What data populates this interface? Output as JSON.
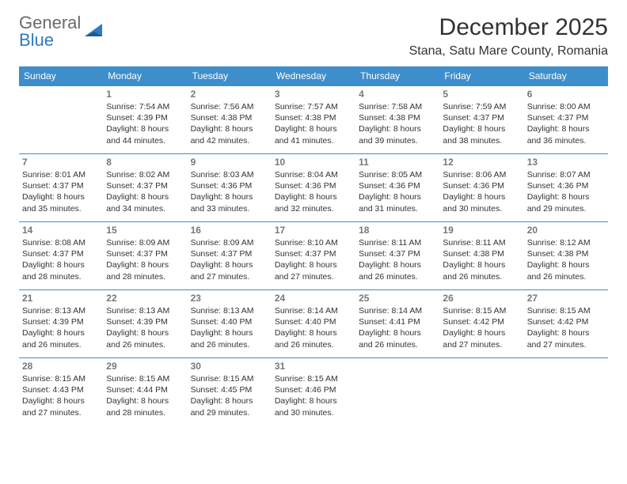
{
  "logo": {
    "line1": "General",
    "line2": "Blue",
    "color1": "#6a6a6a",
    "color2": "#2f7bbf"
  },
  "title": "December 2025",
  "location": "Stana, Satu Mare County, Romania",
  "headerBg": "#3e8ecb",
  "borderColor": "#3e8ecb",
  "dow": [
    "Sunday",
    "Monday",
    "Tuesday",
    "Wednesday",
    "Thursday",
    "Friday",
    "Saturday"
  ],
  "weeks": [
    [
      null,
      {
        "n": "1",
        "sr": "7:54 AM",
        "ss": "4:39 PM",
        "dl": "8 hours and 44 minutes."
      },
      {
        "n": "2",
        "sr": "7:56 AM",
        "ss": "4:38 PM",
        "dl": "8 hours and 42 minutes."
      },
      {
        "n": "3",
        "sr": "7:57 AM",
        "ss": "4:38 PM",
        "dl": "8 hours and 41 minutes."
      },
      {
        "n": "4",
        "sr": "7:58 AM",
        "ss": "4:38 PM",
        "dl": "8 hours and 39 minutes."
      },
      {
        "n": "5",
        "sr": "7:59 AM",
        "ss": "4:37 PM",
        "dl": "8 hours and 38 minutes."
      },
      {
        "n": "6",
        "sr": "8:00 AM",
        "ss": "4:37 PM",
        "dl": "8 hours and 36 minutes."
      }
    ],
    [
      {
        "n": "7",
        "sr": "8:01 AM",
        "ss": "4:37 PM",
        "dl": "8 hours and 35 minutes."
      },
      {
        "n": "8",
        "sr": "8:02 AM",
        "ss": "4:37 PM",
        "dl": "8 hours and 34 minutes."
      },
      {
        "n": "9",
        "sr": "8:03 AM",
        "ss": "4:36 PM",
        "dl": "8 hours and 33 minutes."
      },
      {
        "n": "10",
        "sr": "8:04 AM",
        "ss": "4:36 PM",
        "dl": "8 hours and 32 minutes."
      },
      {
        "n": "11",
        "sr": "8:05 AM",
        "ss": "4:36 PM",
        "dl": "8 hours and 31 minutes."
      },
      {
        "n": "12",
        "sr": "8:06 AM",
        "ss": "4:36 PM",
        "dl": "8 hours and 30 minutes."
      },
      {
        "n": "13",
        "sr": "8:07 AM",
        "ss": "4:36 PM",
        "dl": "8 hours and 29 minutes."
      }
    ],
    [
      {
        "n": "14",
        "sr": "8:08 AM",
        "ss": "4:37 PM",
        "dl": "8 hours and 28 minutes."
      },
      {
        "n": "15",
        "sr": "8:09 AM",
        "ss": "4:37 PM",
        "dl": "8 hours and 28 minutes."
      },
      {
        "n": "16",
        "sr": "8:09 AM",
        "ss": "4:37 PM",
        "dl": "8 hours and 27 minutes."
      },
      {
        "n": "17",
        "sr": "8:10 AM",
        "ss": "4:37 PM",
        "dl": "8 hours and 27 minutes."
      },
      {
        "n": "18",
        "sr": "8:11 AM",
        "ss": "4:37 PM",
        "dl": "8 hours and 26 minutes."
      },
      {
        "n": "19",
        "sr": "8:11 AM",
        "ss": "4:38 PM",
        "dl": "8 hours and 26 minutes."
      },
      {
        "n": "20",
        "sr": "8:12 AM",
        "ss": "4:38 PM",
        "dl": "8 hours and 26 minutes."
      }
    ],
    [
      {
        "n": "21",
        "sr": "8:13 AM",
        "ss": "4:39 PM",
        "dl": "8 hours and 26 minutes."
      },
      {
        "n": "22",
        "sr": "8:13 AM",
        "ss": "4:39 PM",
        "dl": "8 hours and 26 minutes."
      },
      {
        "n": "23",
        "sr": "8:13 AM",
        "ss": "4:40 PM",
        "dl": "8 hours and 26 minutes."
      },
      {
        "n": "24",
        "sr": "8:14 AM",
        "ss": "4:40 PM",
        "dl": "8 hours and 26 minutes."
      },
      {
        "n": "25",
        "sr": "8:14 AM",
        "ss": "4:41 PM",
        "dl": "8 hours and 26 minutes."
      },
      {
        "n": "26",
        "sr": "8:15 AM",
        "ss": "4:42 PM",
        "dl": "8 hours and 27 minutes."
      },
      {
        "n": "27",
        "sr": "8:15 AM",
        "ss": "4:42 PM",
        "dl": "8 hours and 27 minutes."
      }
    ],
    [
      {
        "n": "28",
        "sr": "8:15 AM",
        "ss": "4:43 PM",
        "dl": "8 hours and 27 minutes."
      },
      {
        "n": "29",
        "sr": "8:15 AM",
        "ss": "4:44 PM",
        "dl": "8 hours and 28 minutes."
      },
      {
        "n": "30",
        "sr": "8:15 AM",
        "ss": "4:45 PM",
        "dl": "8 hours and 29 minutes."
      },
      {
        "n": "31",
        "sr": "8:15 AM",
        "ss": "4:46 PM",
        "dl": "8 hours and 30 minutes."
      },
      null,
      null,
      null
    ]
  ],
  "labels": {
    "sunrise": "Sunrise: ",
    "sunset": "Sunset: ",
    "daylight": "Daylight: "
  }
}
